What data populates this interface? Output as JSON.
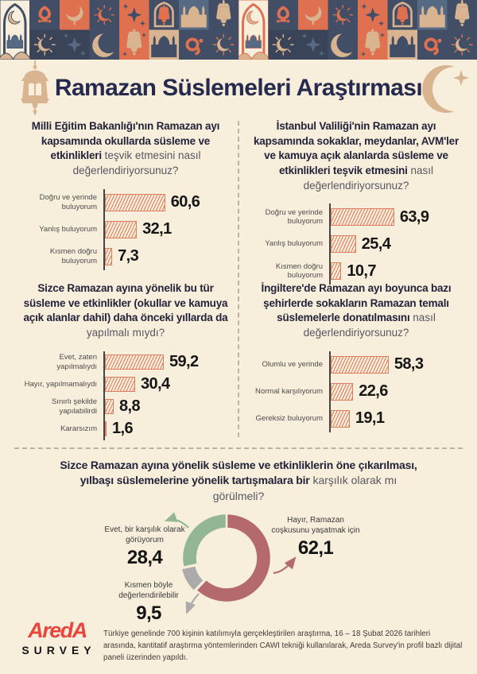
{
  "title": "Ramazan Süslemeleri Araştırması",
  "icons": {
    "header_left": "fanous-lantern-icon",
    "header_right": "crescent-star-icon",
    "top_border": "ramadan-tile-pattern"
  },
  "colors": {
    "background": "#f8eedc",
    "tile_navy": "#414e66",
    "tile_navy_dark": "#3a4459",
    "tile_slate": "#566a83",
    "tile_coral": "#df7150",
    "tile_tan": "#d9b491",
    "title_navy": "#252a4e",
    "bar_hatch": "#dd7f5e",
    "donut_red": "#b46a6c",
    "donut_green": "#93b794",
    "donut_gray": "#ababab",
    "logo_red": "#e8463d"
  },
  "chart_data": [
    {
      "type": "bar",
      "orientation": "horizontal",
      "question_bold": "Milli Eğitim Bakanlığı'nın Ramazan ayı kapsamında okullarda süsleme ve etkinlikleri",
      "question_regular": "teşvik etmesini nasıl değerlendiriyorsunuz?",
      "categories": [
        "Doğru ve yerinde buluyorum",
        "Yanlış buluyorum",
        "Kısmen doğru buluyorum"
      ],
      "values": [
        60.6,
        32.1,
        7.3
      ],
      "value_format": "comma-decimal",
      "xlim": [
        0,
        100
      ]
    },
    {
      "type": "bar",
      "orientation": "horizontal",
      "question_bold": "İstanbul Valiliği'nin Ramazan ayı kapsamında sokaklar, meydanlar, AVM'ler ve kamuya açık alanlarda süsleme ve etkinlikleri teşvik etmesini",
      "question_regular": "nasıl değerlendiriyorsunuz?",
      "categories": [
        "Doğru ve yerinde buluyorum",
        "Yanlış buluyorum",
        "Kısmen doğru buluyorum"
      ],
      "values": [
        63.9,
        25.4,
        10.7
      ],
      "value_format": "comma-decimal",
      "xlim": [
        0,
        100
      ]
    },
    {
      "type": "bar",
      "orientation": "horizontal",
      "question_bold": "Sizce Ramazan ayına yönelik bu tür süsleme ve etkinlikler (okullar ve kamuya açık alanlar dahil) daha önceki yıllarda da",
      "question_regular": "yapılmalı mıydı?",
      "categories": [
        "Evet, zaten yapılmalıydı",
        "Hayır, yapılmamalıydı",
        "Sınırlı şekilde yapılabilirdi",
        "Kararsızım"
      ],
      "values": [
        59.2,
        30.4,
        8.8,
        1.6
      ],
      "value_format": "comma-decimal",
      "xlim": [
        0,
        100
      ]
    },
    {
      "type": "bar",
      "orientation": "horizontal",
      "question_bold": "İngiltere'de Ramazan ayı boyunca bazı şehirlerde sokakların Ramazan temalı süslemelerle donatılmasını",
      "question_regular": "nasıl değerlendiriyorsunuz?",
      "categories": [
        "Olumlu ve yerinde",
        "Normal karşılıyorum",
        "Gereksiz buluyorum"
      ],
      "values": [
        58.3,
        22.6,
        19.1
      ],
      "value_format": "comma-decimal",
      "xlim": [
        0,
        100
      ]
    },
    {
      "type": "donut",
      "question_bold": "Sizce Ramazan ayına yönelik süsleme ve etkinliklerin öne çıkarılması, yılbaşı süslemelerine yönelik tartışmalara bir",
      "question_regular": "karşılık olarak mı görülmeli?",
      "start_angle_deg": 0,
      "direction": "clockwise",
      "slices": [
        {
          "label": "Hayır, Ramazan coşkusunu yaşatmak için",
          "value": 62.1,
          "color": "#b46a6c",
          "offset": false
        },
        {
          "label": "Kısmen böyle değerlendirilebilir",
          "value": 9.5,
          "color": "#ababab",
          "offset": true
        },
        {
          "label": "Evet, bir karşılık olarak görüyorum",
          "value": 28.4,
          "color": "#93b794",
          "offset": false
        }
      ]
    }
  ],
  "footer": {
    "logo_line1": "AredA",
    "logo_line2": "SURVEY",
    "note": "Türkiye genelinde 700 kişinin katılımıyla gerçekleştirilen araştırma, 16 – 18 Şubat 2026 tarihleri arasında, kantitatif araştırma yöntemlerinden CAWI tekniği kullanılarak, Areda Survey'in profil bazlı dijital paneli üzerinden yapıldı."
  }
}
